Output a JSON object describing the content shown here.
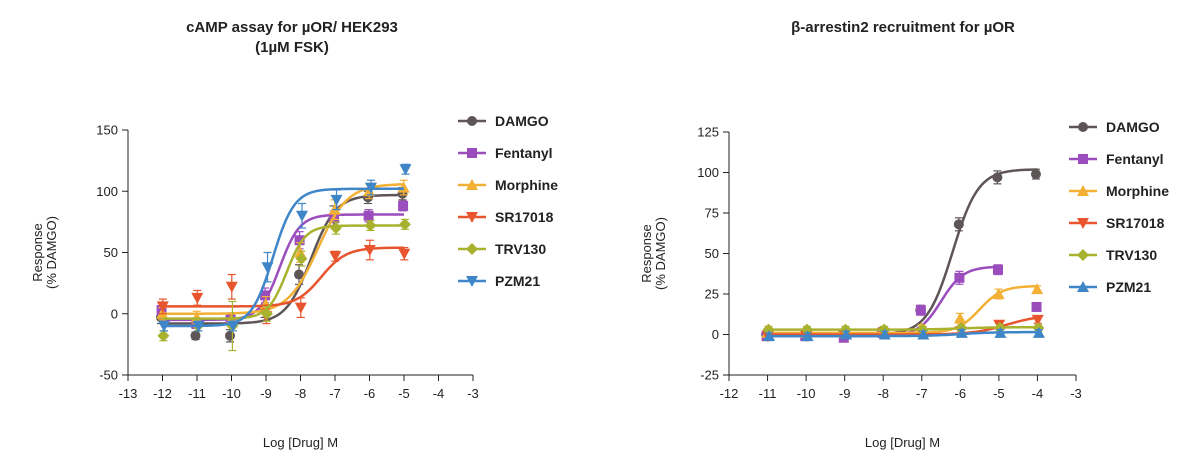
{
  "colors": {
    "DAMGO": "#5e5557",
    "Fentanyl": "#9b4dbd",
    "Morphine": "#f2b035",
    "SR17018": "#e8542d",
    "TRV130": "#a9b22f",
    "PZM21": "#3f86c9"
  },
  "chart_data": [
    {
      "type": "scatter",
      "title": "cAMP assay for µOR/ HEK293",
      "subtitle": "(1µM FSK)",
      "xlabel": "Log [Drug] M",
      "ylabel": "Response",
      "ylabel2": "(% DAMGO)",
      "xlim": [
        -13,
        -3
      ],
      "ylim": [
        -50,
        150
      ],
      "xticks": [
        -13,
        -12,
        -11,
        -10,
        -9,
        -8,
        -7,
        -6,
        -5,
        -4,
        -3
      ],
      "xtick_labels": [
        "-13",
        "-12",
        "-11",
        "-10",
        "-9",
        "-8",
        "-7",
        "-6",
        "-5",
        "-4",
        "-3"
      ],
      "yticks": [
        -50,
        0,
        50,
        100,
        150
      ],
      "ytick_labels": [
        "-50",
        "0",
        "50",
        "100",
        "150"
      ],
      "legend_position": "right",
      "x": [
        -12,
        -11,
        -10,
        -9,
        -8,
        -7,
        -6,
        -5
      ],
      "series": [
        {
          "name": "DAMGO",
          "marker": "circle",
          "values": [
            -3,
            -18,
            -18,
            5,
            32,
            80,
            95,
            98
          ],
          "errors": [
            5,
            3,
            5,
            8,
            8,
            8,
            5,
            5
          ],
          "fit": {
            "bottom": -8,
            "top": 97,
            "logec50": -7.7,
            "hill": 1.2
          }
        },
        {
          "name": "Fentanyl",
          "marker": "square",
          "values": [
            3,
            -8,
            -5,
            15,
            60,
            78,
            80,
            88
          ],
          "errors": [
            6,
            4,
            4,
            6,
            7,
            6,
            5,
            4
          ],
          "fit": {
            "bottom": -5,
            "top": 81,
            "logec50": -8.6,
            "hill": 1.5
          }
        },
        {
          "name": "Morphine",
          "marker": "triangle-up",
          "values": [
            0,
            -3,
            -5,
            8,
            50,
            85,
            100,
            103
          ],
          "errors": [
            5,
            5,
            5,
            6,
            8,
            8,
            6,
            6
          ],
          "fit": {
            "bottom": 0,
            "top": 106,
            "logec50": -7.5,
            "hill": 1.0
          }
        },
        {
          "name": "SR17018",
          "marker": "triangle-down",
          "values": [
            6,
            13,
            22,
            -2,
            5,
            47,
            52,
            49
          ],
          "errors": [
            6,
            6,
            10,
            6,
            8,
            4,
            8,
            5
          ],
          "fit": {
            "bottom": 6,
            "top": 54,
            "logec50": -7.4,
            "hill": 1.2
          }
        },
        {
          "name": "TRV130",
          "marker": "diamond",
          "values": [
            -18,
            -10,
            -10,
            0,
            45,
            70,
            72,
            73
          ],
          "errors": [
            4,
            4,
            20,
            6,
            6,
            5,
            4,
            4
          ],
          "fit": {
            "bottom": -4,
            "top": 72,
            "logec50": -8.4,
            "hill": 1.6
          }
        },
        {
          "name": "PZM21",
          "marker": "triangle-down",
          "values": [
            -10,
            -10,
            -10,
            38,
            80,
            93,
            103,
            118
          ],
          "errors": [
            4,
            4,
            4,
            12,
            10,
            8,
            6,
            4
          ],
          "fit": {
            "bottom": -10,
            "top": 102,
            "logec50": -8.8,
            "hill": 1.4
          }
        }
      ]
    },
    {
      "type": "scatter",
      "title": "β-arrestin2  recruitment for µOR",
      "xlabel": "Log [Drug] M",
      "ylabel": "Response",
      "ylabel2": "(% DAMGO)",
      "xlim": [
        -12,
        -3
      ],
      "ylim": [
        -25,
        125
      ],
      "xticks": [
        -12,
        -11,
        -10,
        -9,
        -8,
        -7,
        -6,
        -5,
        -4,
        -3
      ],
      "xtick_labels": [
        "-12",
        "-11",
        "-10",
        "-9",
        "-8",
        "-7",
        "-6",
        "-5",
        "-4",
        "-3"
      ],
      "yticks": [
        -25,
        0,
        25,
        50,
        75,
        100,
        125
      ],
      "ytick_labels": [
        "-25",
        "0",
        "25",
        "50",
        "75",
        "100",
        "125"
      ],
      "legend_position": "right",
      "x": [
        -11,
        -10,
        -9,
        -8,
        -7,
        -6,
        -5,
        -4
      ],
      "series": [
        {
          "name": "DAMGO",
          "marker": "circle",
          "values": [
            0,
            0,
            1,
            2,
            15,
            68,
            97,
            99
          ],
          "errors": [
            2,
            2,
            2,
            2,
            3,
            4,
            4,
            3
          ],
          "fit": {
            "bottom": 0,
            "top": 102,
            "logec50": -6.2,
            "hill": 1.3
          },
          "xrange": [
            -11,
            -4
          ]
        },
        {
          "name": "Fentanyl",
          "marker": "square",
          "values": [
            -1,
            -1,
            -2,
            1,
            15,
            35,
            40,
            17
          ],
          "errors": [
            2,
            2,
            2,
            2,
            3,
            4,
            3,
            2
          ],
          "fit": {
            "bottom": -1,
            "top": 42,
            "logec50": -6.5,
            "hill": 1.5
          },
          "xrange": [
            -11,
            -5
          ]
        },
        {
          "name": "Morphine",
          "marker": "triangle-up",
          "values": [
            1,
            1,
            1,
            2,
            4,
            10,
            25,
            28
          ],
          "errors": [
            2,
            2,
            2,
            2,
            2,
            3,
            3,
            2
          ],
          "fit": {
            "bottom": 1,
            "top": 30,
            "logec50": -5.5,
            "hill": 1.5
          },
          "xrange": [
            -11,
            -4
          ]
        },
        {
          "name": "SR17018",
          "marker": "triangle-down",
          "values": [
            -1,
            -1,
            0,
            1,
            1,
            2,
            6,
            9
          ],
          "errors": [
            2,
            2,
            2,
            2,
            2,
            2,
            2,
            2
          ],
          "fit": {
            "bottom": 0,
            "top": 12,
            "logec50": -4.8,
            "hill": 1.0
          },
          "xrange": [
            -11,
            -4
          ]
        },
        {
          "name": "TRV130",
          "marker": "diamond",
          "values": [
            3,
            3,
            3,
            3,
            3,
            4,
            4,
            4
          ],
          "errors": [
            2,
            2,
            2,
            2,
            2,
            2,
            2,
            2
          ],
          "fit": {
            "bottom": 3,
            "top": 4.5,
            "logec50": -6.0,
            "hill": 1.0
          },
          "xrange": [
            -11,
            -4
          ]
        },
        {
          "name": "PZM21",
          "marker": "triangle-up",
          "values": [
            -1,
            -1,
            0,
            0,
            0,
            1,
            1,
            1
          ],
          "errors": [
            2,
            2,
            2,
            2,
            2,
            2,
            2,
            2
          ],
          "fit": {
            "bottom": -1,
            "top": 1.5,
            "logec50": -6.0,
            "hill": 1.0
          },
          "xrange": [
            -11,
            -4
          ]
        }
      ]
    }
  ]
}
